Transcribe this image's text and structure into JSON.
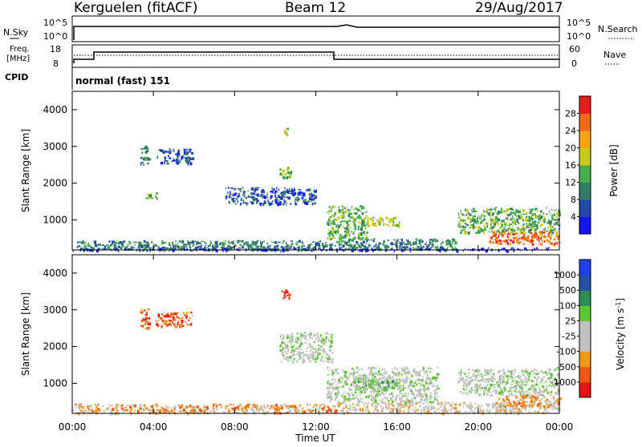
{
  "header": {
    "station": "Kerguelen (fitACF)",
    "beam": "Beam 12",
    "date": "29/Aug/2017"
  },
  "panels": {
    "nsky": {
      "left_label": "N.Sky",
      "right_label": "N.Search",
      "left_ticks": [
        "10^5",
        "10^0"
      ],
      "right_ticks": [
        "10^5",
        "10^0"
      ]
    },
    "freq": {
      "left_label_line1": "Freq.",
      "left_label_line2": "[MHz]",
      "right_label": "Nave",
      "left_ticks": [
        "18",
        "8"
      ],
      "right_ticks": [
        "60",
        "0"
      ],
      "cpid_label": "CPID",
      "cpid_text": "normal (fast) 151"
    }
  },
  "colors": {
    "power": [
      "#1414ff",
      "#214aa6",
      "#2f7e63",
      "#46ad4c",
      "#c6cb1d",
      "#f4a314",
      "#ed6b1b",
      "#e91c1c"
    ],
    "velocity": [
      "#e61414",
      "#ec5a14",
      "#f2961b",
      "#c2c2c2",
      "#c2c2c2",
      "#5dc632",
      "#2e8c5a",
      "#264fa6",
      "#1c3fe6"
    ]
  },
  "chart_data": [
    {
      "type": "heatmap",
      "title": "Power",
      "xlabel": "Time UT",
      "ylabel": "Slant Range [km]",
      "x_ticks": [
        "00:00",
        "04:00",
        "08:00",
        "12:00",
        "16:00",
        "20:00",
        "00:00"
      ],
      "y_ticks": [
        "1000",
        "2000",
        "3000",
        "4000"
      ],
      "x_range_hours": [
        0,
        24
      ],
      "y_range_km": [
        180,
        4500
      ],
      "colorbar": {
        "label": "Power [dB]",
        "ticks": [
          "4",
          "8",
          "12",
          "16",
          "20",
          "24",
          "28"
        ],
        "range": [
          0,
          32
        ]
      },
      "regions": [
        {
          "t": [
            0,
            24
          ],
          "r": [
            180,
            260
          ],
          "level": 0
        },
        {
          "t": [
            0.2,
            13
          ],
          "r": [
            200,
            450
          ],
          "level": 2
        },
        {
          "t": [
            3.3,
            3.8
          ],
          "r": [
            2500,
            3050
          ],
          "level": 2
        },
        {
          "t": [
            4.1,
            5.9
          ],
          "r": [
            2550,
            2950
          ],
          "level": 1
        },
        {
          "t": [
            3.6,
            4.2
          ],
          "r": [
            1600,
            1800
          ],
          "level": 3
        },
        {
          "t": [
            10.2,
            10.8
          ],
          "r": [
            2150,
            2500
          ],
          "level": 3
        },
        {
          "t": [
            10.4,
            10.6
          ],
          "r": [
            3300,
            3550
          ],
          "level": 4
        },
        {
          "t": [
            7.5,
            12
          ],
          "r": [
            1450,
            1900
          ],
          "level": 1
        },
        {
          "t": [
            12.5,
            14.5
          ],
          "r": [
            500,
            1400
          ],
          "level": 3
        },
        {
          "t": [
            14.5,
            16.2
          ],
          "r": [
            850,
            1100
          ],
          "level": 4
        },
        {
          "t": [
            13,
            19
          ],
          "r": [
            200,
            500
          ],
          "level": 2
        },
        {
          "t": [
            19,
            24
          ],
          "r": [
            650,
            1350
          ],
          "level": 3
        },
        {
          "t": [
            20.5,
            24
          ],
          "r": [
            350,
            700
          ],
          "level": 6
        }
      ]
    },
    {
      "type": "heatmap",
      "title": "Velocity",
      "xlabel": "Time UT",
      "ylabel": "Slant Range [km]",
      "x_ticks": [
        "00:00",
        "04:00",
        "08:00",
        "12:00",
        "16:00",
        "20:00",
        "00:00"
      ],
      "y_ticks": [
        "1000",
        "2000",
        "3000",
        "4000"
      ],
      "x_range_hours": [
        0,
        24
      ],
      "y_range_km": [
        180,
        4500
      ],
      "colorbar": {
        "label": "Velocity [m s^-1]",
        "ticks": [
          "1000",
          "500",
          "100",
          "25",
          "-25",
          "-100",
          "-500",
          "-1000"
        ]
      },
      "regions": [
        {
          "t": [
            0,
            13
          ],
          "r": [
            200,
            450
          ],
          "level": 2
        },
        {
          "t": [
            3.3,
            3.8
          ],
          "r": [
            2500,
            3050
          ],
          "level": 1
        },
        {
          "t": [
            4.1,
            5.9
          ],
          "r": [
            2550,
            2950
          ],
          "level": 1
        },
        {
          "t": [
            10.3,
            10.7
          ],
          "r": [
            3300,
            3550
          ],
          "level": 0
        },
        {
          "t": [
            10.2,
            12.8
          ],
          "r": [
            1600,
            2400
          ],
          "level": 4
        },
        {
          "t": [
            12.5,
            18
          ],
          "r": [
            500,
            1450
          ],
          "level": 4
        },
        {
          "t": [
            14,
            16
          ],
          "r": [
            850,
            1100
          ],
          "level": 5
        },
        {
          "t": [
            13,
            24
          ],
          "r": [
            200,
            500
          ],
          "level": 3
        },
        {
          "t": [
            19,
            24
          ],
          "r": [
            700,
            1400
          ],
          "level": 4
        },
        {
          "t": [
            21,
            24
          ],
          "r": [
            350,
            700
          ],
          "level": 2
        }
      ]
    }
  ]
}
